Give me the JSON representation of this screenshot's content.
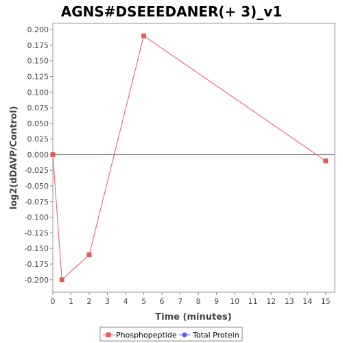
{
  "chart_data": {
    "type": "line",
    "title": "AGNS#DSEEEDANER(+ 3)_v1",
    "xlabel": "Time (minutes)",
    "ylabel": "log2(dDAVP/Control)",
    "xlim": [
      0,
      15.5
    ],
    "ylim": [
      -0.22,
      0.21
    ],
    "x_ticks": [
      0,
      1,
      2,
      3,
      4,
      5,
      6,
      7,
      8,
      9,
      10,
      11,
      12,
      13,
      14,
      15
    ],
    "y_ticks": [
      0.2,
      0.175,
      0.15,
      0.125,
      0.1,
      0.075,
      0.05,
      0.025,
      0.0,
      -0.025,
      -0.05,
      -0.075,
      -0.1,
      -0.125,
      -0.15,
      -0.175,
      -0.2
    ],
    "x_tick_labels": [
      "0",
      "1",
      "2",
      "3",
      "4",
      "5",
      "6",
      "7",
      "8",
      "9",
      "10",
      "11",
      "12",
      "13",
      "14",
      "15"
    ],
    "y_tick_labels": [
      "0.200",
      "0.175",
      "0.150",
      "0.125",
      "0.100",
      "0.075",
      "0.050",
      "0.025",
      "0.000",
      "-0.025",
      "-0.050",
      "-0.075",
      "-0.100",
      "-0.125",
      "-0.150",
      "-0.175",
      "-0.200"
    ],
    "zero_line": true,
    "grid": false,
    "series": [
      {
        "name": "Phosphopeptide",
        "color": "#e8595c",
        "marker": "square",
        "x": [
          0,
          0.5,
          2,
          5,
          15
        ],
        "y": [
          0.0,
          -0.2,
          -0.16,
          0.19,
          -0.01
        ]
      }
    ],
    "legend": {
      "placement": "bottom-center",
      "entries": [
        {
          "label": "Phosphopeptide",
          "color": "#e8595c",
          "marker": "square"
        },
        {
          "label": "Total Protein",
          "color": "#5b5bff",
          "marker": "circle"
        }
      ]
    }
  }
}
